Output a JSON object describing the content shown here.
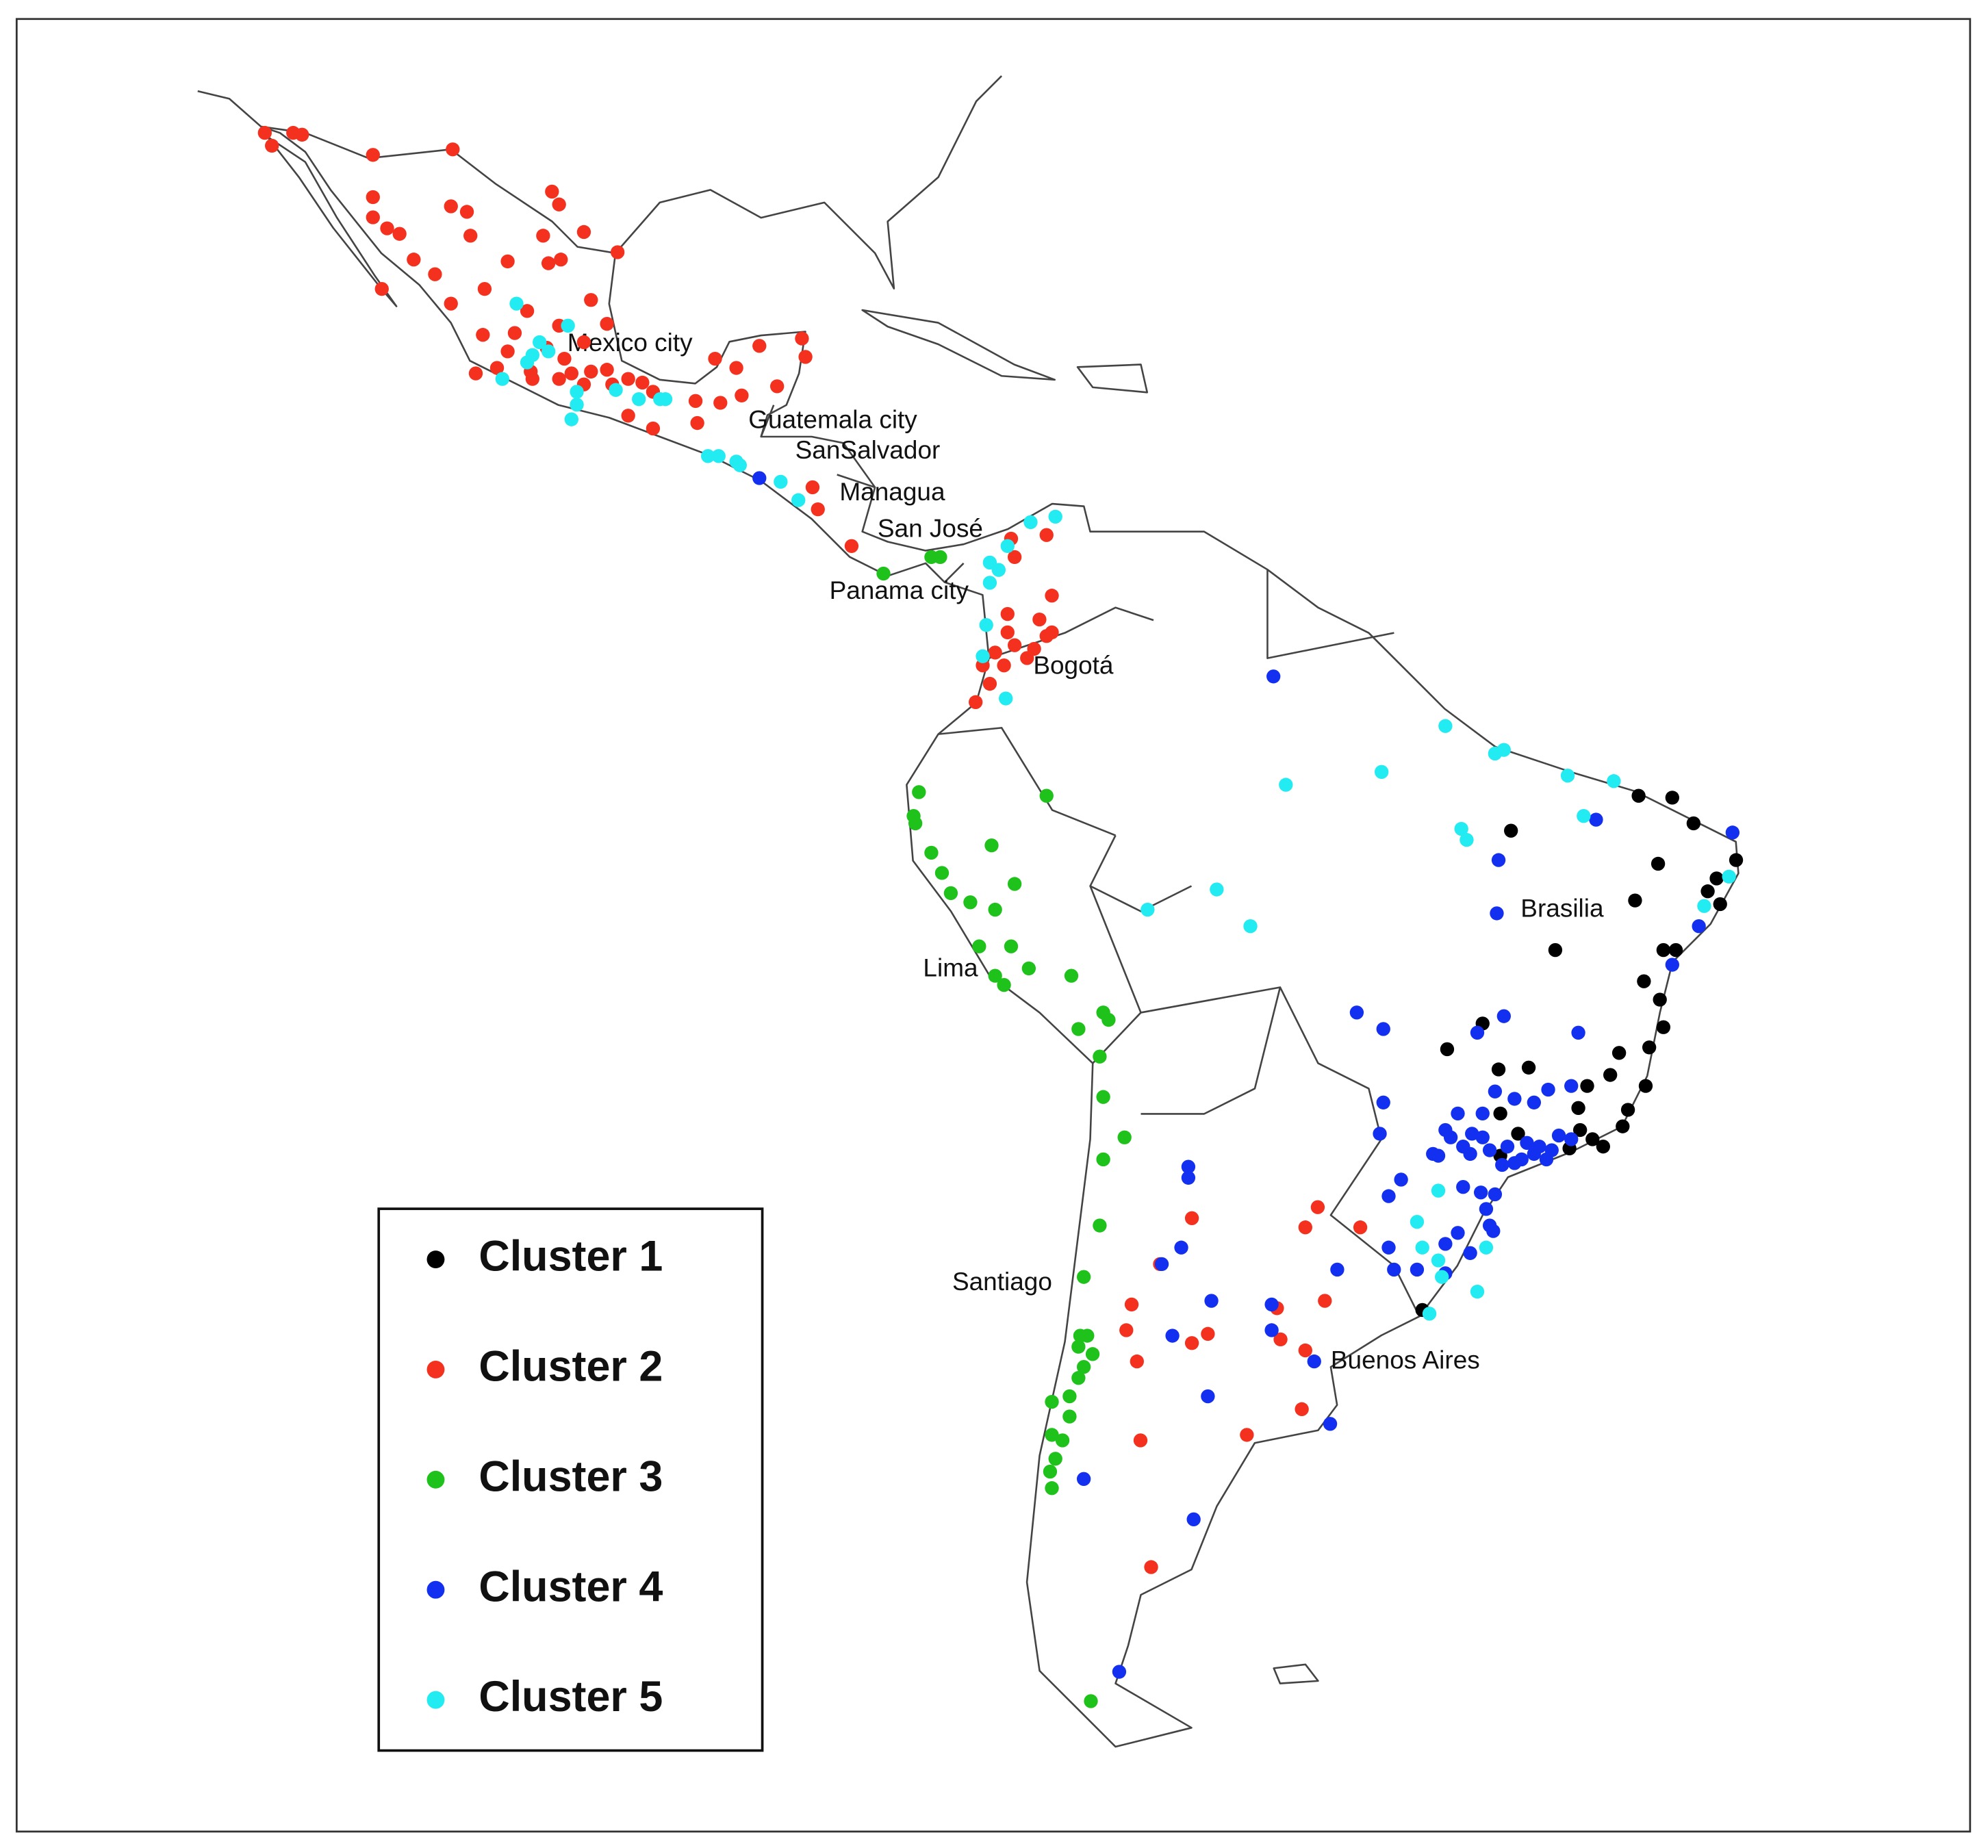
{
  "chart_data": {
    "type": "map",
    "xlim": [
      -131.5,
      -21.3
    ],
    "ylim": [
      -60.3,
      38.4
    ],
    "annotations": [
      "Mexico city",
      "Guatemala city",
      "SanSalvador",
      "Managua",
      "San José",
      "Panama city",
      "Bogotá",
      "Lima",
      "Santiago",
      "Buenos Aires",
      "Brasilia"
    ],
    "series": [
      {
        "name": "Cluster 1",
        "color": "#000000",
        "x": [
          -40.0,
          -38.1,
          -36.9,
          -47.2,
          -38.9,
          -34.5,
          -35.6,
          -36.1,
          -40.2,
          -35.4,
          -44.7,
          -38.6,
          -37.9,
          -39.7,
          -38.8,
          -38.6,
          -48.8,
          -50.8,
          -41.1,
          -39.4,
          -41.6,
          -47.9,
          -46.2,
          -42.9,
          -39.6,
          -47.8,
          -43.4,
          -40.6,
          -40.9,
          -43.3,
          -46.8,
          -42.6,
          -42.0,
          -43.9,
          -47.8,
          -52.2
        ],
        "values": [
          -3.9,
          -4.0,
          -5.4,
          -5.8,
          -7.6,
          -7.4,
          -8.4,
          -9.1,
          -9.6,
          -9.8,
          -12.3,
          -12.3,
          -12.3,
          -14.0,
          -15.0,
          -16.5,
          -16.3,
          -17.7,
          -17.9,
          -17.6,
          -19.1,
          -18.8,
          -18.7,
          -19.7,
          -19.7,
          -21.2,
          -20.9,
          -21.0,
          -21.9,
          -22.1,
          -22.3,
          -22.6,
          -23.0,
          -23.1,
          -23.5,
          -31.9
        ]
      },
      {
        "name": "Cluster 2",
        "color": "#f4311f",
        "x": [
          -117.5,
          -117.1,
          -115.9,
          -115.4,
          -111.4,
          -106.9,
          -111.4,
          -107.0,
          -106.1,
          -101.3,
          -100.9,
          -111.4,
          -110.6,
          -109.9,
          -105.9,
          -101.8,
          -99.5,
          -109.1,
          -107.9,
          -103.8,
          -101.5,
          -100.8,
          -97.6,
          -110.9,
          -105.1,
          -107.0,
          -99.1,
          -102.7,
          -100.9,
          -105.2,
          -103.4,
          -99.5,
          -98.2,
          -103.8,
          -101.6,
          -100.6,
          -105.6,
          -104.4,
          -102.5,
          -100.2,
          -99.1,
          -98.2,
          -97.0,
          -99.5,
          -97.9,
          -96.2,
          -95.6,
          -102.4,
          -100.9,
          -92.1,
          -90.9,
          -89.6,
          -87.2,
          -87.0,
          -88.6,
          -90.6,
          -91.8,
          -93.2,
          -97.0,
          -95.6,
          -93.1,
          -86.6,
          -86.3,
          -84.4,
          -75.4,
          -73.4,
          -75.2,
          -73.1,
          -75.6,
          -73.8,
          -73.1,
          -75.6,
          -75.2,
          -74.1,
          -76.3,
          -74.5,
          -77.0,
          -75.8,
          -76.6,
          -77.4,
          -73.4,
          -65.2,
          -58.1,
          -58.8,
          -55.7,
          -67.0,
          -68.6,
          -60.4,
          -68.9,
          -65.2,
          -64.3,
          -60.2,
          -57.7,
          -58.8,
          -68.3,
          -59.0,
          -68.1,
          -62.1,
          -67.5
        ],
        "values": [
          32.2,
          31.5,
          32.2,
          32.1,
          31.0,
          31.3,
          28.7,
          28.2,
          27.9,
          29.0,
          28.3,
          27.6,
          27.0,
          26.7,
          26.6,
          26.6,
          26.8,
          25.3,
          24.5,
          25.2,
          25.1,
          25.3,
          25.7,
          23.7,
          23.7,
          22.9,
          23.1,
          22.5,
          21.7,
          21.2,
          21.3,
          20.8,
          21.8,
          20.3,
          20.5,
          19.9,
          19.1,
          19.4,
          19.2,
          19.1,
          19.2,
          19.3,
          18.8,
          18.5,
          18.5,
          18.6,
          18.1,
          18.8,
          18.8,
          19.9,
          19.4,
          20.6,
          21.0,
          20.0,
          18.4,
          17.9,
          17.5,
          17.6,
          16.8,
          16.1,
          16.4,
          12.9,
          11.7,
          9.7,
          10.1,
          10.3,
          9.1,
          7.0,
          6.0,
          5.7,
          5.0,
          5.0,
          4.3,
          4.1,
          3.9,
          3.6,
          3.2,
          3.2,
          2.2,
          1.2,
          4.8,
          -26.9,
          -26.3,
          -27.4,
          -27.4,
          -29.4,
          -31.6,
          -31.8,
          -33.0,
          -33.7,
          -33.2,
          -33.5,
          -31.4,
          -34.1,
          -34.7,
          -37.3,
          -39.0,
          -38.7,
          -45.9
        ]
      },
      {
        "name": "Cluster 3",
        "color": "#1fc21a",
        "x": [
          -79.4,
          -79.9,
          -82.6,
          -80.6,
          -80.9,
          -80.8,
          -79.9,
          -76.5,
          -79.3,
          -78.8,
          -77.7,
          -76.3,
          -75.2,
          -73.4,
          -77.2,
          -75.4,
          -76.3,
          -75.8,
          -74.4,
          -72.0,
          -71.6,
          -70.2,
          -69.9,
          -70.4,
          -70.2,
          -69.0,
          -70.2,
          -70.4,
          -71.3,
          -71.5,
          -71.1,
          -71.6,
          -70.8,
          -71.3,
          -71.6,
          -72.1,
          -73.1,
          -72.1,
          -73.1,
          -72.5,
          -72.9,
          -73.2,
          -73.1,
          -70.9
        ],
        "values": [
          9.1,
          9.1,
          8.2,
          -3.7,
          -5.0,
          -5.4,
          -7.0,
          -6.6,
          -8.1,
          -9.2,
          -9.7,
          -10.1,
          -8.7,
          -3.9,
          -12.1,
          -12.1,
          -13.7,
          -14.2,
          -13.3,
          -13.7,
          -16.6,
          -15.7,
          -16.1,
          -18.1,
          -20.3,
          -22.5,
          -23.7,
          -27.3,
          -30.1,
          -33.3,
          -33.3,
          -33.9,
          -34.3,
          -35.0,
          -35.6,
          -36.6,
          -36.9,
          -37.7,
          -38.7,
          -39.0,
          -40.0,
          -40.7,
          -41.6,
          -53.2
        ]
      },
      {
        "name": "Cluster 4",
        "color": "#1330f0",
        "x": [
          -89.6,
          -60.6,
          -34.7,
          -42.4,
          -47.9,
          -48.0,
          -38.1,
          -36.6,
          -55.9,
          -54.4,
          -47.6,
          -49.1,
          -43.4,
          -54.4,
          -54.6,
          -50.2,
          -48.8,
          -48.1,
          -47.0,
          -45.9,
          -45.1,
          -43.8,
          -49.4,
          -48.8,
          -50.9,
          -50.6,
          -49.9,
          -51.6,
          -51.3,
          -49.5,
          -48.4,
          -47.4,
          -46.3,
          -45.6,
          -44.9,
          -46.6,
          -45.9,
          -47.7,
          -47.0,
          -45.2,
          -44.5,
          -43.8,
          -53.4,
          -49.9,
          -48.9,
          -48.1,
          -54.1,
          -48.6,
          -48.4,
          -50.2,
          -48.2,
          -50.9,
          -49.5,
          -54.1,
          -50.9,
          -53.8,
          -52.5,
          -57.0,
          -65.4,
          -65.4,
          -65.8,
          -66.9,
          -64.1,
          -60.7,
          -60.7,
          -66.3,
          -58.3,
          -57.4,
          -64.3,
          -71.3,
          -65.1,
          -69.3
        ],
        "values": [
          13.4,
          2.6,
          -5.9,
          -5.2,
          -7.4,
          -10.3,
          -13.1,
          -11.0,
          -15.7,
          -16.6,
          -15.9,
          -16.8,
          -16.8,
          -20.6,
          -22.3,
          -21.2,
          -21.2,
          -20.0,
          -20.4,
          -20.6,
          -19.9,
          -19.7,
          -22.3,
          -22.5,
          -22.1,
          -22.5,
          -23.0,
          -23.4,
          -23.5,
          -23.4,
          -23.2,
          -23.0,
          -22.8,
          -23.0,
          -23.2,
          -23.7,
          -23.4,
          -24.0,
          -23.9,
          -23.7,
          -22.4,
          -22.6,
          -24.8,
          -25.2,
          -25.5,
          -25.6,
          -25.7,
          -26.4,
          -27.3,
          -27.7,
          -27.6,
          -28.3,
          -28.8,
          -28.5,
          -29.9,
          -29.7,
          -29.7,
          -29.7,
          -24.1,
          -24.7,
          -28.5,
          -29.4,
          -31.4,
          -31.6,
          -33.0,
          -33.3,
          -34.7,
          -38.1,
          -36.6,
          -41.1,
          -43.3,
          -51.6
        ]
      },
      {
        "name": "Cluster 5",
        "color": "#22ecf2",
        "x": [
          -103.3,
          -100.4,
          -102.0,
          -101.5,
          -102.4,
          -102.7,
          -104.1,
          -99.9,
          -99.9,
          -100.2,
          -97.7,
          -96.4,
          -95.2,
          -94.9,
          -92.5,
          -91.9,
          -90.9,
          -90.7,
          -88.4,
          -87.4,
          -76.6,
          -76.1,
          -75.6,
          -74.3,
          -72.9,
          -76.6,
          -76.8,
          -77.0,
          -75.7,
          -50.9,
          -48.1,
          -47.6,
          -59.9,
          -54.5,
          -44.0,
          -41.4,
          -43.1,
          -50.0,
          -49.7,
          -67.7,
          -63.8,
          -61.9,
          -36.3,
          -34.9,
          -51.3,
          -52.5,
          -51.3,
          -51.1,
          -48.6,
          -49.1,
          -51.8,
          -52.2
        ],
        "values": [
          22.9,
          21.7,
          20.8,
          20.3,
          20.1,
          19.7,
          18.8,
          18.1,
          17.4,
          16.6,
          18.2,
          17.7,
          17.7,
          17.7,
          14.6,
          14.6,
          14.3,
          14.1,
          13.2,
          12.2,
          8.8,
          8.4,
          9.7,
          11.0,
          11.3,
          7.7,
          5.4,
          3.7,
          1.4,
          -0.1,
          -1.6,
          -1.4,
          -3.3,
          -2.6,
          -2.8,
          -3.1,
          -5.0,
          -5.7,
          -6.3,
          -10.1,
          -9.0,
          -11.0,
          -9.9,
          -8.3,
          -25.4,
          -27.1,
          -29.2,
          -30.1,
          -28.5,
          -30.9,
          -32.1,
          -28.5
        ]
      }
    ]
  }
}
